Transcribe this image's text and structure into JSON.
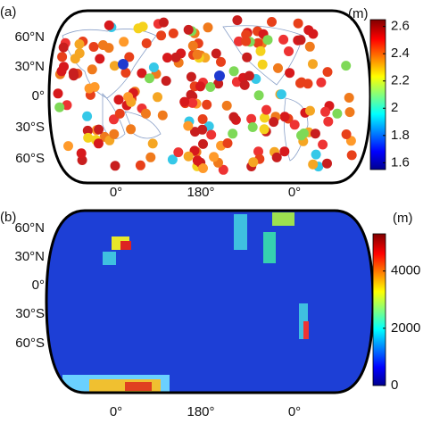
{
  "panels": [
    {
      "label": "(a)",
      "unit": "(m)",
      "lat_labels": [
        "60°N",
        "30°N",
        "0°",
        "30°S",
        "60°S"
      ],
      "lon_labels": [
        "0°",
        "180°",
        "0°"
      ],
      "colorbar": {
        "range": [
          1.55,
          2.65
        ],
        "ticks": [
          1.6,
          1.8,
          2,
          2.2,
          2.4,
          2.6
        ]
      }
    },
    {
      "label": "(b)",
      "unit": "(m)",
      "lat_labels": [
        "60°N",
        "30°N",
        "0°",
        "30°S",
        "60°S"
      ],
      "lon_labels": [
        "0°",
        "180°",
        "0°"
      ],
      "colorbar": {
        "range": [
          0,
          5300
        ],
        "ticks": [
          0,
          2000,
          4000
        ]
      }
    }
  ]
}
